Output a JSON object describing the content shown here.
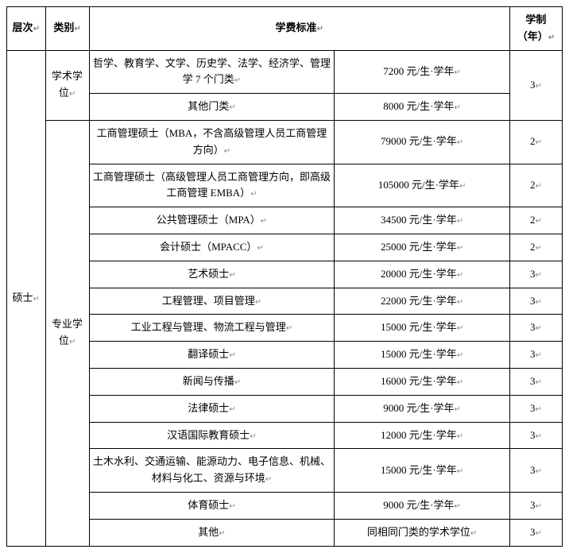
{
  "table": {
    "header": {
      "level": "层次",
      "category": "类别",
      "tuition_standard": "学费标准",
      "duration": "学制（年）"
    },
    "level_label": "硕士",
    "category_academic": "学术学位",
    "category_professional": "专业学位",
    "return_mark": "↵",
    "rows": [
      {
        "desc": "哲学、教育学、文学、历史学、法学、经济学、管理学 7 个门类",
        "fee": "7200 元/生·学年",
        "dur": "3",
        "merge_dur": true
      },
      {
        "desc": "其他门类",
        "fee": "8000 元/生·学年",
        "dur": "",
        "merge_dur": false
      },
      {
        "desc": "工商管理硕士（MBA，不含高级管理人员工商管理方向）",
        "fee": "79000 元/生·学年",
        "dur": "2"
      },
      {
        "desc": "工商管理硕士（高级管理人员工商管理方向，即高级工商管理 EMBA）",
        "fee": "105000 元/生·学年",
        "dur": "2"
      },
      {
        "desc": "公共管理硕士（MPA）",
        "fee": "34500 元/生·学年",
        "dur": "2"
      },
      {
        "desc": "会计硕士（MPACC）",
        "fee": "25000 元/生·学年",
        "dur": "2"
      },
      {
        "desc": "艺术硕士",
        "fee": "20000 元/生·学年",
        "dur": "3"
      },
      {
        "desc": "工程管理、项目管理",
        "fee": "22000 元/生·学年",
        "dur": "3"
      },
      {
        "desc": "工业工程与管理、物流工程与管理",
        "fee": "15000 元/生·学年",
        "dur": "3"
      },
      {
        "desc": "翻译硕士",
        "fee": "15000 元/生·学年",
        "dur": "3"
      },
      {
        "desc": "新闻与传播",
        "fee": "16000 元/生·学年",
        "dur": "3"
      },
      {
        "desc": "法律硕士",
        "fee": "9000 元/生·学年",
        "dur": "3"
      },
      {
        "desc": "汉语国际教育硕士",
        "fee": "12000 元/生·学年",
        "dur": "3"
      },
      {
        "desc": "土木水利、交通运输、能源动力、电子信息、机械、材料与化工、资源与环境",
        "fee": "15000 元/生·学年",
        "dur": "3"
      },
      {
        "desc": "体育硕士",
        "fee": "9000 元/生·学年",
        "dur": "3"
      },
      {
        "desc": "其他",
        "fee": "同相同门类的学术学位",
        "dur": "3"
      }
    ]
  },
  "styling": {
    "border_color": "#000000",
    "text_color": "#000000",
    "return_mark_color": "#888888",
    "font_family": "SimSun",
    "font_size_pt": 10,
    "header_bold": true,
    "background": "#ffffff"
  }
}
